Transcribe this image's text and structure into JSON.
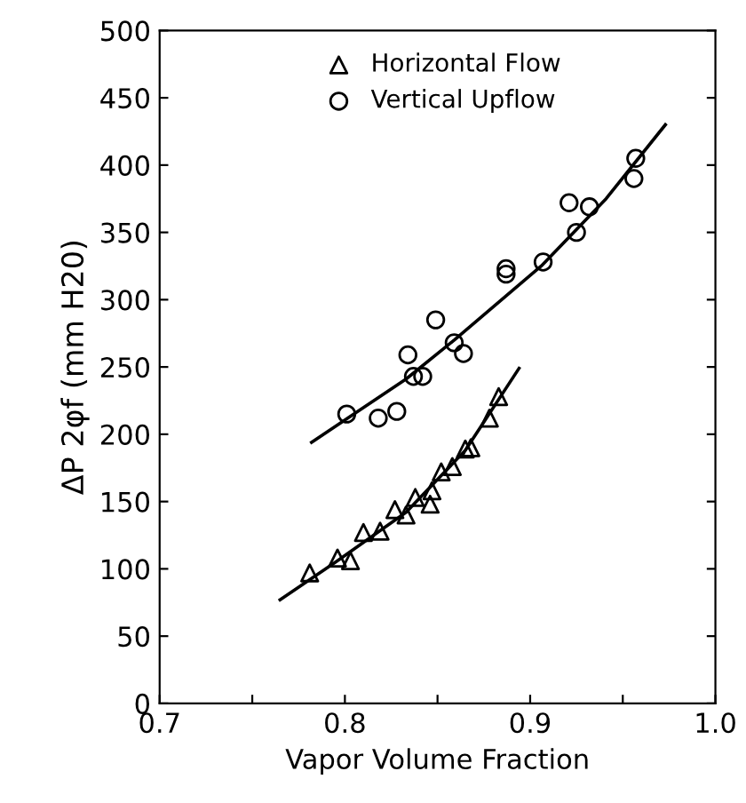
{
  "chart_data": {
    "type": "scatter",
    "xlabel": "Vapor Volume Fraction",
    "ylabel": "ΔP 2φf (mm H20)",
    "xlim": [
      0.7,
      1.0
    ],
    "ylim": [
      0,
      500
    ],
    "xticks": [
      0.7,
      {
        "value": 0.75,
        "label": null
      },
      0.8,
      {
        "value": 0.85,
        "label": null
      },
      0.9,
      {
        "value": 0.95,
        "label": null
      },
      {
        "value": 1.0,
        "label": "1.0"
      }
    ],
    "yticks": [
      0,
      50,
      100,
      150,
      200,
      250,
      300,
      350,
      400,
      450,
      500
    ],
    "legend": "top",
    "grid": false,
    "series": [
      {
        "name": "Horizontal Flow",
        "color": "#000000",
        "marker": "triangle",
        "x": [
          0.883,
          0.878,
          0.868,
          0.865,
          0.858,
          0.852,
          0.847,
          0.846,
          0.838,
          0.833,
          0.827,
          0.819,
          0.81,
          0.803,
          0.796,
          0.781
        ],
        "values": [
          228,
          212,
          190,
          189,
          176,
          172,
          158,
          148,
          153,
          140,
          144,
          128,
          127,
          106,
          108,
          97
        ]
      },
      {
        "name": "Vertical Upflow",
        "color": "#000000",
        "marker": "circle",
        "x": [
          0.957,
          0.956,
          0.921,
          0.932,
          0.925,
          0.907,
          0.887,
          0.887,
          0.849,
          0.859,
          0.864,
          0.834,
          0.837,
          0.842,
          0.801,
          0.818,
          0.828
        ],
        "values": [
          405,
          390,
          372,
          369,
          350,
          328,
          323,
          319,
          285,
          268,
          260,
          259,
          243,
          243,
          215,
          212,
          217
        ]
      },
      {
        "type": "line",
        "color": "#000000",
        "marker": "none",
        "line_style": "solid",
        "x": [
          0.765,
          0.795,
          0.833,
          0.865,
          0.894
        ],
        "values": [
          77,
          105,
          142,
          188,
          249
        ]
      },
      {
        "type": "line",
        "color": "#000000",
        "marker": "none",
        "line_style": "solid",
        "x": [
          0.782,
          0.833,
          0.859,
          0.906,
          0.941,
          0.973
        ],
        "values": [
          194,
          241,
          270,
          325,
          375,
          430
        ]
      }
    ]
  }
}
